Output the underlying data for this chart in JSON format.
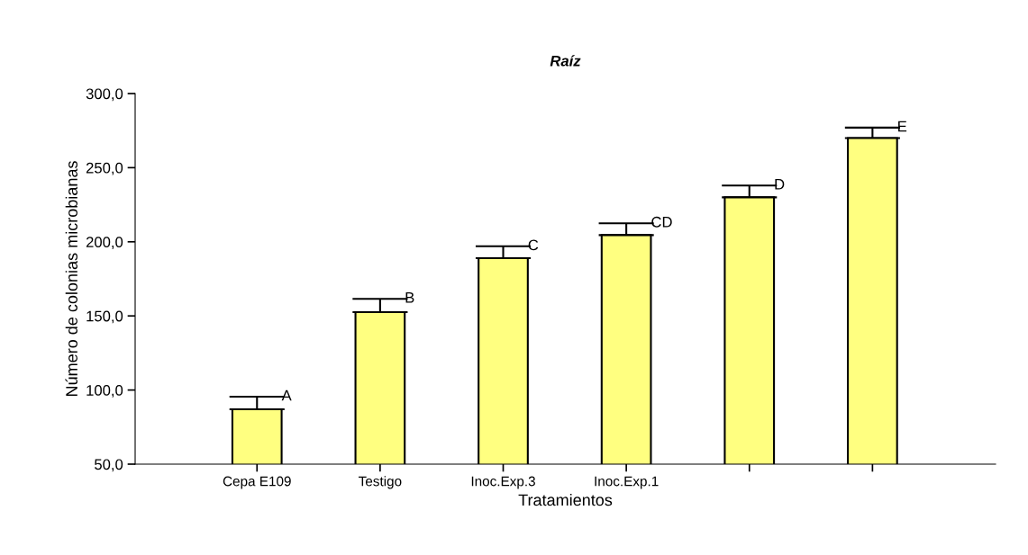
{
  "chart_data": {
    "type": "bar",
    "title": "Raíz",
    "xlabel": "Tratamientos",
    "ylabel": "Número de colonias microbianas",
    "categories": [
      "Cepa E109",
      "Testigo",
      "Inoc.Exp.3",
      "Inoc.Exp.1",
      null,
      null
    ],
    "values": [
      87,
      152.5,
      189,
      204.5,
      230,
      270
    ],
    "errors": [
      8.5,
      9,
      8,
      8,
      8,
      7
    ],
    "value_labels": [
      "A",
      "B",
      "C",
      "CD",
      "D",
      "E"
    ],
    "color": "#ffff80",
    "ylim": [
      50,
      300
    ],
    "yticks": [
      {
        "value": 50,
        "label": "50,0"
      },
      {
        "value": 100,
        "label": "100,0"
      },
      {
        "value": 150,
        "label": "150,0"
      },
      {
        "value": 200,
        "label": "200,0"
      },
      {
        "value": 250,
        "label": "250,0"
      },
      {
        "value": 300,
        "label": "300,0"
      }
    ],
    "grid": false,
    "legend": false
  }
}
